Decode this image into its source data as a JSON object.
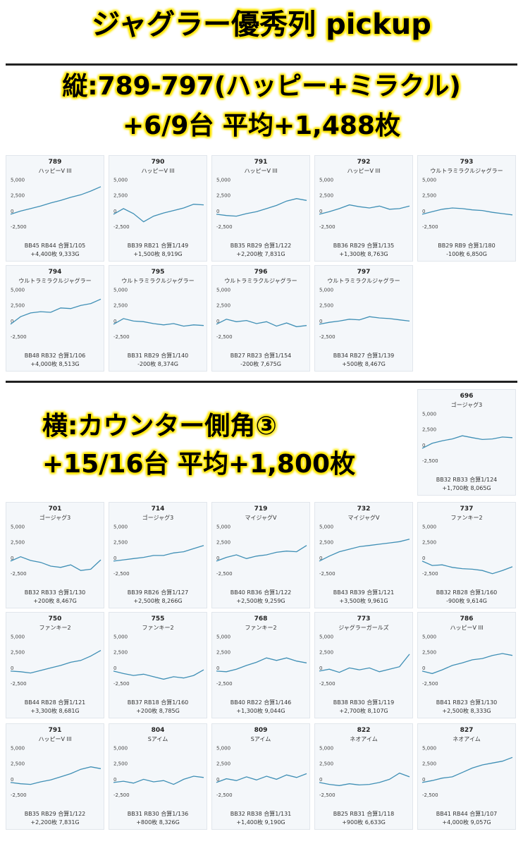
{
  "title": "ジャグラー優秀列 pickup",
  "section1": {
    "line1": "縦:789-797(ハッピー+ミラクル)",
    "line2": "+6/9台 平均+1,488枚"
  },
  "section2": {
    "line1": "横:カウンター側角③",
    "line2": "+15/16台 平均+1,800枚"
  },
  "chart_data": {
    "type": "line",
    "y_ticks": [
      "5,000",
      "2,500",
      "0",
      "-2,500"
    ],
    "ylim": [
      -3500,
      5500
    ],
    "machines": [
      {
        "num": "789",
        "model": "ハッピーV III",
        "stats": "BB45 RB44 合算1/105",
        "result": "+4,400枚 9,333G",
        "values": [
          0,
          500,
          900,
          1300,
          1800,
          2200,
          2700,
          3100,
          3700,
          4400
        ]
      },
      {
        "num": "790",
        "model": "ハッピーV III",
        "stats": "BB39 RB21 合算1/149",
        "result": "+1,500枚 8,919G",
        "values": [
          0,
          900,
          100,
          -1200,
          -300,
          200,
          600,
          1000,
          1600,
          1500
        ]
      },
      {
        "num": "791",
        "model": "ハッピーV III",
        "stats": "BB35 RB29 合算1/122",
        "result": "+2,200枚 7,831G",
        "values": [
          0,
          -200,
          -300,
          100,
          400,
          900,
          1400,
          2100,
          2500,
          2200
        ]
      },
      {
        "num": "792",
        "model": "ハッピーV III",
        "stats": "BB36 RB29 合算1/135",
        "result": "+1,300枚 8,763G",
        "values": [
          0,
          400,
          900,
          1500,
          1200,
          1000,
          1300,
          800,
          900,
          1300
        ]
      },
      {
        "num": "793",
        "model": "ウルトラミラクルジャグラー",
        "stats": "BB29 RB9 合算1/180",
        "result": "-100枚 6,850G",
        "values": [
          0,
          400,
          800,
          1000,
          900,
          700,
          600,
          300,
          100,
          -100
        ]
      },
      {
        "num": "794",
        "model": "ウルトラミラクルジャグラー",
        "stats": "BB48 RB32 合算1/106",
        "result": "+4,000枚 8,513G",
        "values": [
          0,
          1200,
          1800,
          2000,
          1900,
          2600,
          2500,
          3000,
          3300,
          4000
        ]
      },
      {
        "num": "795",
        "model": "ウルトラミラクルジャグラー",
        "stats": "BB31 RB29 合算1/140",
        "result": "-200枚 8,374G",
        "values": [
          0,
          900,
          500,
          400,
          100,
          -100,
          100,
          -300,
          -100,
          -200
        ]
      },
      {
        "num": "796",
        "model": "ウルトラミラクルジャグラー",
        "stats": "BB27 RB23 合算1/154",
        "result": "-200枚 7,675G",
        "values": [
          0,
          800,
          400,
          600,
          100,
          400,
          -300,
          200,
          -400,
          -200
        ]
      },
      {
        "num": "797",
        "model": "ウルトラミラクルジャグラー",
        "stats": "BB34 RB27 合算1/139",
        "result": "+500枚 8,467G",
        "values": [
          0,
          300,
          500,
          800,
          700,
          1200,
          1000,
          900,
          700,
          500
        ]
      },
      {
        "num": "696",
        "model": "ゴージャグ3",
        "stats": "BB32 RB33 合算1/124",
        "result": "+1,700枚 8,065G",
        "values": [
          0,
          800,
          1200,
          1500,
          2000,
          1700,
          1400,
          1500,
          1800,
          1700
        ]
      },
      {
        "num": "701",
        "model": "ゴージャグ3",
        "stats": "BB32 RB33 合算1/130",
        "result": "+200枚 8,467G",
        "values": [
          0,
          700,
          100,
          -200,
          -800,
          -1000,
          -600,
          -1500,
          -1300,
          200
        ]
      },
      {
        "num": "714",
        "model": "ゴージャグ3",
        "stats": "BB39 RB26 合算1/127",
        "result": "+2,500枚 8,266G",
        "values": [
          0,
          200,
          400,
          600,
          900,
          900,
          1300,
          1500,
          2000,
          2500
        ]
      },
      {
        "num": "719",
        "model": "マイジャグV",
        "stats": "BB40 RB36 合算1/122",
        "result": "+2,500枚 9,259G",
        "values": [
          0,
          600,
          1000,
          400,
          800,
          1000,
          1400,
          1600,
          1500,
          2500
        ]
      },
      {
        "num": "732",
        "model": "マイジャグV",
        "stats": "BB43 RB39 合算1/121",
        "result": "+3,500枚 9,961G",
        "values": [
          0,
          800,
          1500,
          1900,
          2300,
          2500,
          2700,
          2900,
          3100,
          3500
        ]
      },
      {
        "num": "737",
        "model": "ファンキー2",
        "stats": "BB32 RB28 合算1/160",
        "result": "-900枚 9,614G",
        "values": [
          0,
          -700,
          -600,
          -1000,
          -1200,
          -1300,
          -1500,
          -2000,
          -1500,
          -900
        ]
      },
      {
        "num": "750",
        "model": "ファンキー2",
        "stats": "BB44 RB28 合算1/121",
        "result": "+3,300枚 8,681G",
        "values": [
          0,
          -100,
          -300,
          100,
          500,
          900,
          1400,
          1700,
          2400,
          3300
        ]
      },
      {
        "num": "755",
        "model": "ファンキー2",
        "stats": "BB37 RB18 合算1/160",
        "result": "+200枚 8,785G",
        "values": [
          0,
          -400,
          -700,
          -500,
          -900,
          -1300,
          -900,
          -1100,
          -700,
          200
        ]
      },
      {
        "num": "768",
        "model": "ファンキー2",
        "stats": "BB40 RB22 合算1/146",
        "result": "+1,300枚 9,044G",
        "values": [
          0,
          -100,
          300,
          900,
          1400,
          2100,
          1700,
          2100,
          1600,
          1300
        ]
      },
      {
        "num": "773",
        "model": "ジャグラーガールズ",
        "stats": "BB38 RB30 合算1/119",
        "result": "+2,700枚 8,107G",
        "values": [
          0,
          300,
          -200,
          500,
          200,
          500,
          -100,
          300,
          700,
          2700
        ]
      },
      {
        "num": "786",
        "model": "ハッピーV III",
        "stats": "BB41 RB23 合算1/130",
        "result": "+2,500枚 8,333G",
        "values": [
          0,
          -400,
          200,
          900,
          1300,
          1800,
          2000,
          2500,
          2800,
          2500
        ]
      },
      {
        "num": "791",
        "model": "ハッピーV III",
        "stats": "BB35 RB29 合算1/122",
        "result": "+2,200枚 7,831G",
        "values": [
          0,
          -200,
          -300,
          100,
          400,
          900,
          1400,
          2100,
          2500,
          2200
        ]
      },
      {
        "num": "804",
        "model": "Sアイム",
        "stats": "BB31 RB30 合算1/136",
        "result": "+800枚 8,326G",
        "values": [
          0,
          200,
          -100,
          500,
          100,
          300,
          -300,
          500,
          1000,
          800
        ]
      },
      {
        "num": "809",
        "model": "Sアイム",
        "stats": "BB32 RB38 合算1/131",
        "result": "+1,400枚 9,190G",
        "values": [
          0,
          600,
          300,
          900,
          400,
          1000,
          500,
          1200,
          800,
          1400
        ]
      },
      {
        "num": "822",
        "model": "ネオアイム",
        "stats": "BB25 RB31 合算1/118",
        "result": "+900枚 6,633G",
        "values": [
          0,
          -300,
          -500,
          -200,
          -400,
          -300,
          0,
          500,
          1500,
          900
        ]
      },
      {
        "num": "827",
        "model": "ネオアイム",
        "stats": "BB41 RB44 合算1/107",
        "result": "+4,000枚 9,057G",
        "values": [
          0,
          300,
          700,
          900,
          1600,
          2300,
          2800,
          3100,
          3400,
          4000
        ]
      }
    ]
  }
}
